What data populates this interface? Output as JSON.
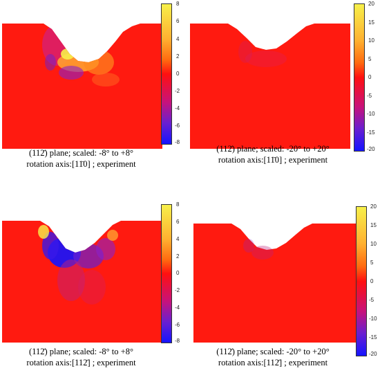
{
  "panels": [
    {
      "caption_line1": "(112̄) plane; scaled: -8° to +8°",
      "caption_line2": "rotation axis:[11̄0] ; experiment",
      "colorbar_ticks": [
        "8",
        "6",
        "4",
        "2",
        "0",
        "-2",
        "-4",
        "-6",
        "-8"
      ],
      "colorbar_range": [
        -8,
        8
      ]
    },
    {
      "caption_line1": "(112̄) plane; scaled: -20° to +20°",
      "caption_line2": "rotation axis:[11̄0] ; experiment",
      "colorbar_ticks": [
        "20",
        "15",
        "10",
        "5",
        "0",
        "-5",
        "-10",
        "-15",
        "-20"
      ],
      "colorbar_range": [
        -20,
        20
      ]
    },
    {
      "caption_line1": "(112̄) plane; scaled: -8° to +8°",
      "caption_line2": "rotation axis:[112̄] ; experiment",
      "colorbar_ticks": [
        "8",
        "6",
        "4",
        "2",
        "0",
        "-2",
        "-4",
        "-6",
        "-8"
      ],
      "colorbar_range": [
        -8,
        8
      ]
    },
    {
      "caption_line1": "(112̄) plane; scaled: -20° to +20°",
      "caption_line2": "rotation axis:[112̄] ; experiment",
      "colorbar_ticks": [
        "20",
        "15",
        "10",
        "5",
        "0",
        "-5",
        "-10",
        "-15",
        "-20"
      ],
      "colorbar_range": [
        -20,
        20
      ]
    }
  ],
  "colors": {
    "base": "#ff1a10",
    "high": "#f7f04a",
    "mid_high": "#ffa030",
    "low": "#1414ff",
    "mid_low": "#8a22c8"
  }
}
